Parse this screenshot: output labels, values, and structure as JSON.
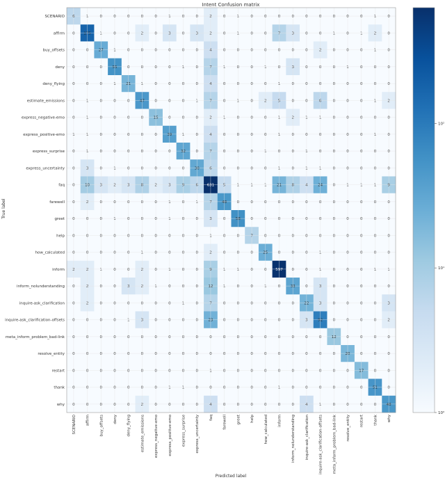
{
  "chart_data": {
    "type": "heatmap",
    "title": "Intent Confusion matrix",
    "xlabel": "Predicted label",
    "ylabel": "True label",
    "labels": [
      "SCENARIO",
      "affirm",
      "buy_offsets",
      "deny",
      "deny_flying",
      "estimate_emissions",
      "express_negative-emo",
      "express_positive-emo",
      "express_surprise",
      "express_uncertainty",
      "faq",
      "farewell",
      "greet",
      "help",
      "how_calculated",
      "inform",
      "inform_nolunderstanding",
      "inquire-ask_clarification",
      "inquire-ask_clarification-offsets",
      "meta_inform_problem_bad-link",
      "resolve_entity",
      "restart",
      "thank",
      "why"
    ],
    "matrix": [
      [
        6,
        1,
        0,
        0,
        0,
        0,
        0,
        1,
        0,
        0,
        2,
        0,
        1,
        0,
        0,
        0,
        0,
        0,
        0,
        0,
        0,
        0,
        1,
        0
      ],
      [
        0,
        175,
        1,
        0,
        0,
        2,
        0,
        3,
        0,
        3,
        2,
        0,
        1,
        0,
        0,
        7,
        3,
        0,
        0,
        1,
        0,
        1,
        2,
        0
      ],
      [
        0,
        0,
        27,
        1,
        0,
        0,
        0,
        0,
        0,
        0,
        4,
        0,
        0,
        0,
        0,
        0,
        0,
        0,
        2,
        0,
        0,
        0,
        1,
        0
      ],
      [
        0,
        0,
        0,
        55,
        0,
        0,
        0,
        0,
        1,
        0,
        7,
        1,
        0,
        0,
        1,
        0,
        3,
        0,
        0,
        0,
        1,
        0,
        0,
        0
      ],
      [
        0,
        0,
        0,
        1,
        21,
        1,
        0,
        0,
        0,
        0,
        4,
        0,
        0,
        0,
        0,
        1,
        0,
        0,
        0,
        0,
        0,
        0,
        0,
        0
      ],
      [
        0,
        1,
        0,
        0,
        0,
        47,
        0,
        0,
        0,
        1,
        7,
        0,
        1,
        0,
        2,
        5,
        0,
        0,
        6,
        0,
        0,
        0,
        1,
        2
      ],
      [
        0,
        1,
        0,
        0,
        0,
        0,
        15,
        0,
        0,
        0,
        2,
        1,
        0,
        0,
        0,
        1,
        2,
        1,
        1,
        0,
        0,
        0,
        0,
        0
      ],
      [
        1,
        1,
        0,
        0,
        0,
        0,
        0,
        39,
        1,
        0,
        4,
        0,
        0,
        0,
        0,
        1,
        0,
        0,
        0,
        0,
        0,
        0,
        1,
        0
      ],
      [
        0,
        1,
        0,
        0,
        0,
        0,
        0,
        0,
        32,
        0,
        7,
        0,
        0,
        0,
        1,
        0,
        0,
        1,
        0,
        0,
        0,
        0,
        0,
        0
      ],
      [
        0,
        3,
        0,
        1,
        0,
        0,
        0,
        0,
        0,
        30,
        6,
        0,
        0,
        0,
        0,
        1,
        0,
        1,
        1,
        0,
        0,
        0,
        0,
        0
      ],
      [
        0,
        10,
        3,
        2,
        3,
        8,
        2,
        3,
        9,
        6,
        631,
        5,
        1,
        1,
        1,
        21,
        8,
        4,
        24,
        0,
        1,
        1,
        1,
        9
      ],
      [
        0,
        2,
        0,
        0,
        0,
        0,
        0,
        1,
        0,
        1,
        7,
        48,
        0,
        0,
        0,
        0,
        0,
        0,
        0,
        0,
        0,
        0,
        0,
        0
      ],
      [
        0,
        0,
        0,
        1,
        0,
        0,
        0,
        1,
        0,
        0,
        3,
        0,
        58,
        0,
        0,
        0,
        0,
        0,
        0,
        0,
        0,
        0,
        0,
        0
      ],
      [
        0,
        0,
        0,
        0,
        0,
        0,
        0,
        0,
        0,
        0,
        1,
        0,
        0,
        7,
        0,
        0,
        0,
        0,
        0,
        0,
        0,
        0,
        0,
        0
      ],
      [
        0,
        0,
        0,
        0,
        0,
        1,
        0,
        0,
        0,
        0,
        2,
        0,
        0,
        0,
        25,
        0,
        0,
        0,
        1,
        0,
        0,
        0,
        0,
        0
      ],
      [
        2,
        2,
        1,
        0,
        0,
        2,
        0,
        1,
        0,
        0,
        9,
        1,
        1,
        0,
        0,
        597,
        0,
        0,
        1,
        0,
        0,
        0,
        1,
        1
      ],
      [
        0,
        2,
        0,
        0,
        3,
        2,
        1,
        0,
        0,
        0,
        12,
        1,
        0,
        0,
        1,
        0,
        33,
        0,
        3,
        0,
        0,
        0,
        0,
        0
      ],
      [
        0,
        2,
        0,
        0,
        0,
        0,
        0,
        0,
        1,
        0,
        7,
        0,
        0,
        0,
        0,
        0,
        0,
        22,
        3,
        0,
        0,
        0,
        0,
        3
      ],
      [
        0,
        0,
        0,
        0,
        1,
        3,
        0,
        0,
        0,
        0,
        23,
        0,
        0,
        0,
        0,
        0,
        0,
        3,
        92,
        0,
        0,
        0,
        0,
        2
      ],
      [
        0,
        0,
        0,
        0,
        0,
        0,
        0,
        0,
        0,
        0,
        0,
        0,
        0,
        0,
        0,
        0,
        0,
        0,
        0,
        12,
        0,
        0,
        0,
        0
      ],
      [
        0,
        0,
        0,
        0,
        0,
        0,
        0,
        0,
        0,
        0,
        0,
        0,
        0,
        0,
        0,
        0,
        0,
        0,
        0,
        0,
        20,
        0,
        0,
        0
      ],
      [
        0,
        0,
        0,
        0,
        0,
        0,
        0,
        0,
        0,
        0,
        1,
        0,
        0,
        0,
        0,
        0,
        0,
        0,
        0,
        0,
        0,
        17,
        0,
        0
      ],
      [
        0,
        0,
        0,
        0,
        0,
        0,
        0,
        1,
        1,
        0,
        0,
        0,
        0,
        0,
        0,
        1,
        0,
        0,
        0,
        0,
        0,
        0,
        51,
        0
      ],
      [
        0,
        0,
        0,
        0,
        0,
        2,
        0,
        0,
        0,
        0,
        4,
        0,
        0,
        0,
        0,
        0,
        0,
        4,
        1,
        0,
        0,
        0,
        0,
        48
      ]
    ],
    "colorscale": "Blues",
    "log_scale": true,
    "colorbar_ticks": [
      "10⁰",
      "10¹",
      "10²"
    ],
    "colorbar_tick_values": [
      1,
      10,
      100
    ],
    "colorbar_range": [
      1,
      631
    ],
    "grid": true
  }
}
